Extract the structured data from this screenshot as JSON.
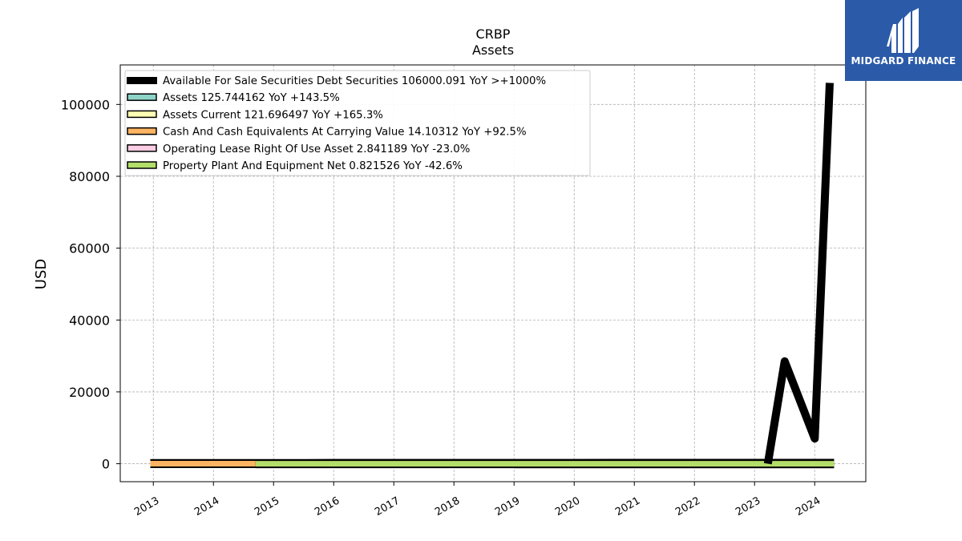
{
  "chart_data": {
    "type": "line",
    "title": "CRBP",
    "subtitle": "Assets",
    "ylabel": "USD",
    "xlabel": "",
    "ylim": [
      -5000,
      111000
    ],
    "xlim": [
      2012.45,
      2024.85
    ],
    "yticks": [
      0,
      20000,
      40000,
      60000,
      80000,
      100000
    ],
    "xticks": [
      "2013",
      "2014",
      "2015",
      "2016",
      "2017",
      "2018",
      "2019",
      "2020",
      "2021",
      "2022",
      "2023",
      "2024"
    ],
    "grid": true,
    "legend_position": "top-left",
    "series": [
      {
        "name": "Available For Sale Securities Debt Securities  106000.091 YoY >+1000%",
        "color": "#000000",
        "style": "line",
        "points": [
          [
            2023.22,
            0
          ],
          [
            2023.5,
            28500
          ],
          [
            2024.0,
            7000
          ],
          [
            2024.25,
            106000
          ]
        ]
      },
      {
        "name": "Assets  125.744162 YoY +143.5%",
        "color": "#8dd3c7",
        "style": "band",
        "points": [
          [
            2012.95,
            50
          ],
          [
            2016,
            60
          ],
          [
            2020,
            90
          ],
          [
            2024.32,
            126
          ]
        ]
      },
      {
        "name": "Assets Current  121.696497 YoY +165.3%",
        "color": "#ffffb3",
        "style": "band",
        "points": [
          [
            2012.95,
            48
          ],
          [
            2016,
            58
          ],
          [
            2020,
            88
          ],
          [
            2024.32,
            122
          ]
        ]
      },
      {
        "name": "Cash And Cash Equivalents At Carrying Value  14.10312 YoY +92.5%",
        "color": "#fdb462",
        "style": "band",
        "points": [
          [
            2012.95,
            10
          ],
          [
            2014.7,
            14
          ]
        ]
      },
      {
        "name": "Operating Lease Right Of Use Asset  2.841189 YoY -23.0%",
        "color": "#fccde5",
        "style": "band",
        "points": [
          [
            2019.0,
            3
          ],
          [
            2024.32,
            3
          ]
        ]
      },
      {
        "name": "Property Plant And Equipment Net  0.821526 YoY -42.6%",
        "color": "#b3de69",
        "style": "band",
        "points": [
          [
            2014.7,
            1
          ],
          [
            2024.32,
            1
          ]
        ]
      }
    ]
  },
  "watermark": {
    "text": "MIDGARD FINANCE",
    "background": "#2b5aa8",
    "color": "#ffffff"
  }
}
